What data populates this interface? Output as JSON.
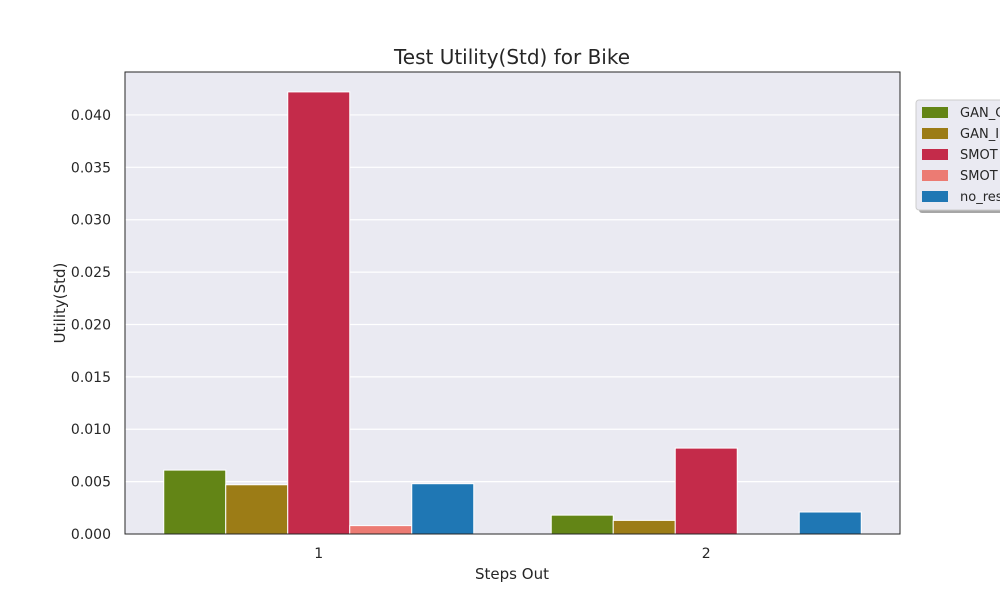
{
  "chart_data": {
    "type": "bar",
    "title": "Test Utility(Std) for Bike",
    "xlabel": "Steps Out",
    "ylabel": "Utility(Std)",
    "categories": [
      "1",
      "2"
    ],
    "ylim": [
      0,
      0.0441
    ],
    "yticks": [
      "0.000",
      "0.005",
      "0.010",
      "0.015",
      "0.020",
      "0.025",
      "0.030",
      "0.035",
      "0.040"
    ],
    "grid": true,
    "legend_position": "right, outside plot (partially cut off)",
    "series": [
      {
        "name": "GAN_C",
        "color": "#638516",
        "values": [
          0.0061,
          0.0018
        ]
      },
      {
        "name": "GAN_I",
        "color": "#9c7c16",
        "values": [
          0.0047,
          0.0013
        ]
      },
      {
        "name": "SMOT",
        "color": "#c42b4a",
        "values": [
          0.0422,
          0.0082
        ]
      },
      {
        "name": "SMOT",
        "color": "#ec7b73",
        "values": [
          0.0008,
          0.0
        ]
      },
      {
        "name": "no_res",
        "color": "#1f77b4",
        "values": [
          0.0048,
          0.0021
        ]
      }
    ],
    "plot_background": "#eaeaf2",
    "grid_color": "#ffffff"
  }
}
